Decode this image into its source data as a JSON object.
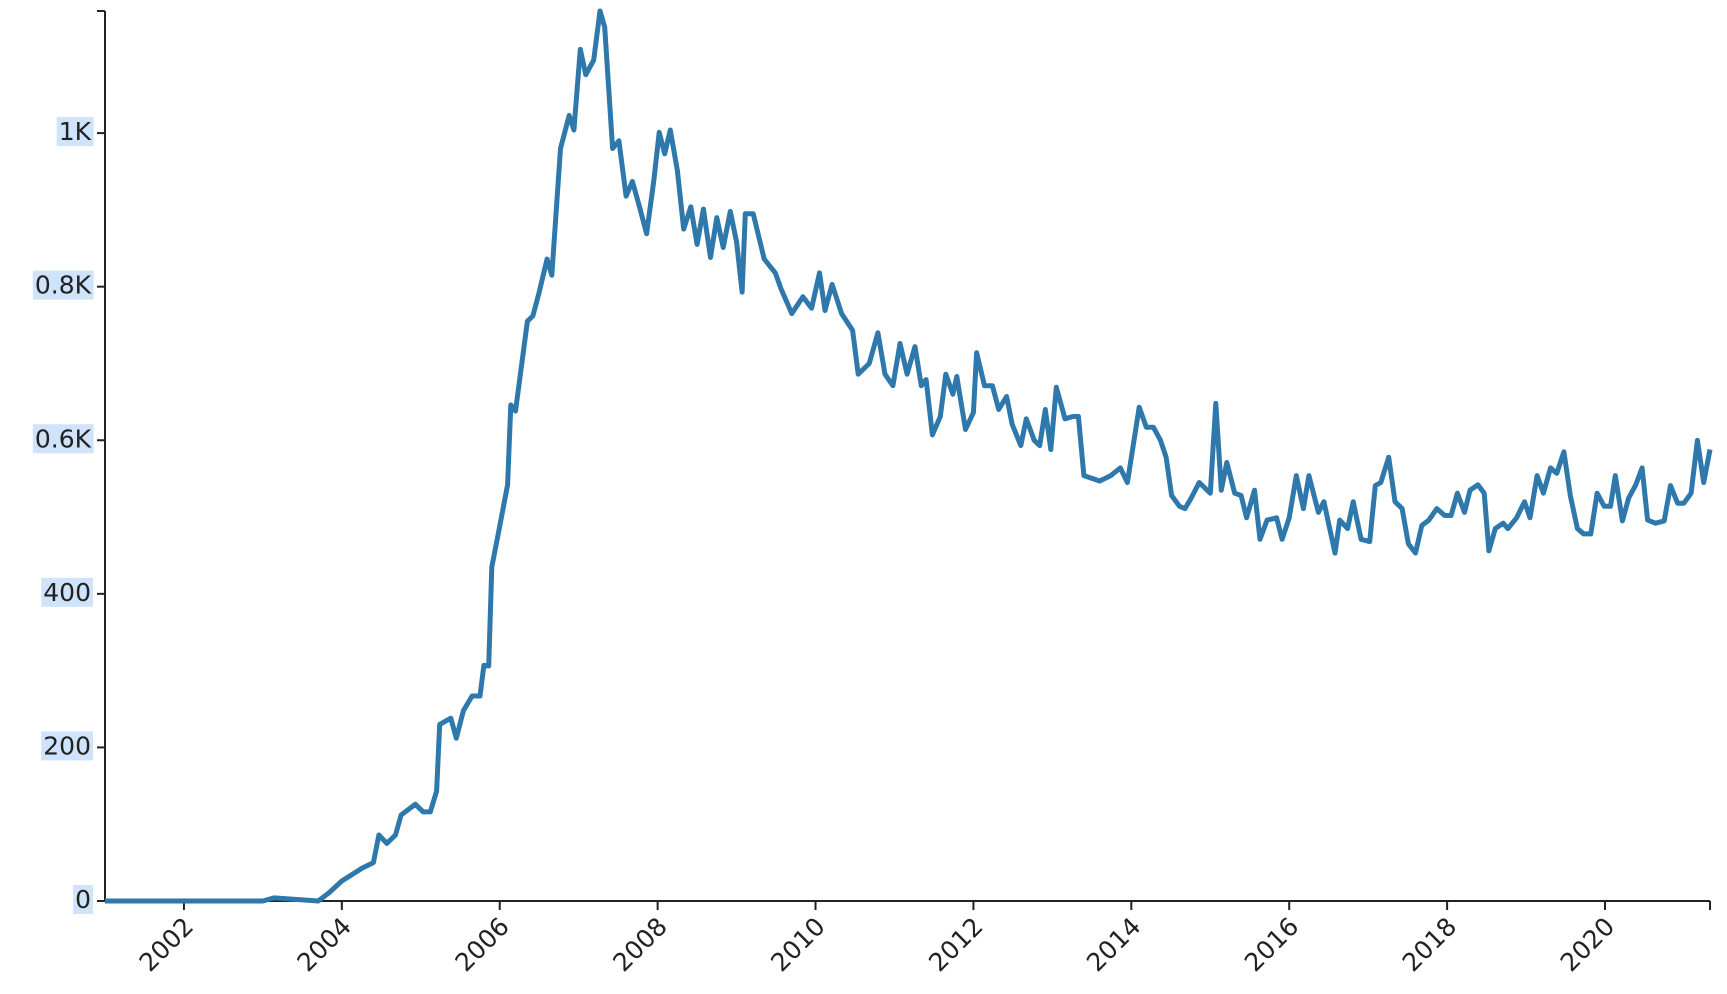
{
  "chart_data": {
    "type": "line",
    "x": [
      2001.0,
      2002.0,
      2003.0,
      2003.14,
      2003.7,
      2003.84,
      2004.0,
      2004.26,
      2004.4,
      2004.47,
      2004.57,
      2004.68,
      2004.75,
      2004.93,
      2005.03,
      2005.12,
      2005.2,
      2005.24,
      2005.38,
      2005.45,
      2005.54,
      2005.65,
      2005.75,
      2005.8,
      2005.86,
      2005.9,
      2006.0,
      2006.1,
      2006.14,
      2006.2,
      2006.35,
      2006.42,
      2006.5,
      2006.6,
      2006.66,
      2006.77,
      2006.88,
      2006.94,
      2007.02,
      2007.09,
      2007.19,
      2007.27,
      2007.33,
      2007.43,
      2007.51,
      2007.6,
      2007.68,
      2007.77,
      2007.86,
      2007.95,
      2008.02,
      2008.09,
      2008.16,
      2008.25,
      2008.33,
      2008.42,
      2008.5,
      2008.58,
      2008.67,
      2008.75,
      2008.83,
      2008.92,
      2009.0,
      2009.07,
      2009.11,
      2009.21,
      2009.35,
      2009.49,
      2009.56,
      2009.7,
      2009.84,
      2009.95,
      2010.05,
      2010.12,
      2010.21,
      2010.33,
      2010.47,
      2010.54,
      2010.68,
      2010.79,
      2010.88,
      2010.98,
      2011.07,
      2011.16,
      2011.26,
      2011.34,
      2011.4,
      2011.48,
      2011.58,
      2011.65,
      2011.74,
      2011.79,
      2011.9,
      2012.0,
      2012.04,
      2012.14,
      2012.24,
      2012.32,
      2012.42,
      2012.49,
      2012.6,
      2012.67,
      2012.77,
      2012.84,
      2012.91,
      2012.98,
      2013.05,
      2013.16,
      2013.26,
      2013.33,
      2013.4,
      2013.6,
      2013.74,
      2013.86,
      2013.95,
      2014.1,
      2014.19,
      2014.28,
      2014.37,
      2014.44,
      2014.51,
      2014.61,
      2014.68,
      2014.76,
      2014.86,
      2015.0,
      2015.07,
      2015.14,
      2015.21,
      2015.31,
      2015.39,
      2015.46,
      2015.56,
      2015.63,
      2015.72,
      2015.84,
      2015.91,
      2016.0,
      2016.09,
      2016.18,
      2016.25,
      2016.37,
      2016.44,
      2016.58,
      2016.64,
      2016.74,
      2016.81,
      2016.91,
      2017.02,
      2017.09,
      2017.16,
      2017.26,
      2017.34,
      2017.43,
      2017.51,
      2017.6,
      2017.68,
      2017.77,
      2017.87,
      2017.97,
      2018.05,
      2018.13,
      2018.22,
      2018.29,
      2018.39,
      2018.47,
      2018.53,
      2018.61,
      2018.71,
      2018.77,
      2018.88,
      2018.98,
      2019.05,
      2019.14,
      2019.22,
      2019.31,
      2019.39,
      2019.48,
      2019.56,
      2019.65,
      2019.73,
      2019.82,
      2019.9,
      2019.99,
      2020.07,
      2020.13,
      2020.22,
      2020.3,
      2020.39,
      2020.47,
      2020.54,
      2020.64,
      2020.75,
      2020.83,
      2020.92,
      2021.0,
      2021.09,
      2021.17,
      2021.25,
      2021.33
    ],
    "values": [
      0,
      0,
      0,
      4,
      0,
      11,
      26,
      43,
      50,
      86,
      75,
      86,
      112,
      126,
      116,
      116,
      143,
      230,
      238,
      212,
      248,
      267,
      267,
      307,
      306,
      435,
      488,
      542,
      646,
      638,
      755,
      762,
      793,
      836,
      815,
      980,
      1023,
      1004,
      1109,
      1076,
      1095,
      1159,
      1138,
      980,
      990,
      918,
      937,
      904,
      869,
      937,
      1001,
      973,
      1004,
      951,
      875,
      904,
      855,
      901,
      838,
      890,
      851,
      898,
      858,
      793,
      895,
      895,
      836,
      818,
      798,
      765,
      787,
      772,
      818,
      769,
      803,
      765,
      743,
      686,
      700,
      740,
      686,
      671,
      726,
      686,
      722,
      671,
      679,
      607,
      631,
      686,
      660,
      683,
      614,
      636,
      714,
      671,
      671,
      640,
      657,
      621,
      593,
      628,
      600,
      593,
      640,
      588,
      669,
      628,
      631,
      631,
      554,
      547,
      554,
      564,
      545,
      643,
      617,
      617,
      600,
      578,
      528,
      514,
      511,
      525,
      545,
      531,
      648,
      535,
      571,
      531,
      528,
      499,
      535,
      471,
      496,
      499,
      471,
      499,
      554,
      511,
      554,
      506,
      520,
      453,
      496,
      485,
      520,
      471,
      468,
      541,
      545,
      578,
      520,
      511,
      465,
      453,
      489,
      496,
      511,
      502,
      502,
      531,
      506,
      535,
      542,
      531,
      456,
      485,
      492,
      485,
      499,
      520,
      499,
      554,
      531,
      564,
      557,
      585,
      528,
      485,
      478,
      478,
      531,
      514,
      514,
      554,
      495,
      525,
      542,
      564,
      496,
      492,
      495,
      541,
      518,
      518,
      531,
      600,
      545,
      588
    ],
    "color": "#2e78ab",
    "xlim": [
      2001,
      2021.33
    ],
    "xticks": [
      2002,
      2004,
      2006,
      2008,
      2010,
      2012,
      2014,
      2016,
      2018,
      2020
    ],
    "ylim": [
      0,
      1159
    ],
    "yticks": [
      0,
      200,
      400,
      {
        "value": 600,
        "label": "0.6K"
      },
      {
        "value": 800,
        "label": "0.8K"
      },
      {
        "value": 1000,
        "label": "1K"
      }
    ]
  }
}
